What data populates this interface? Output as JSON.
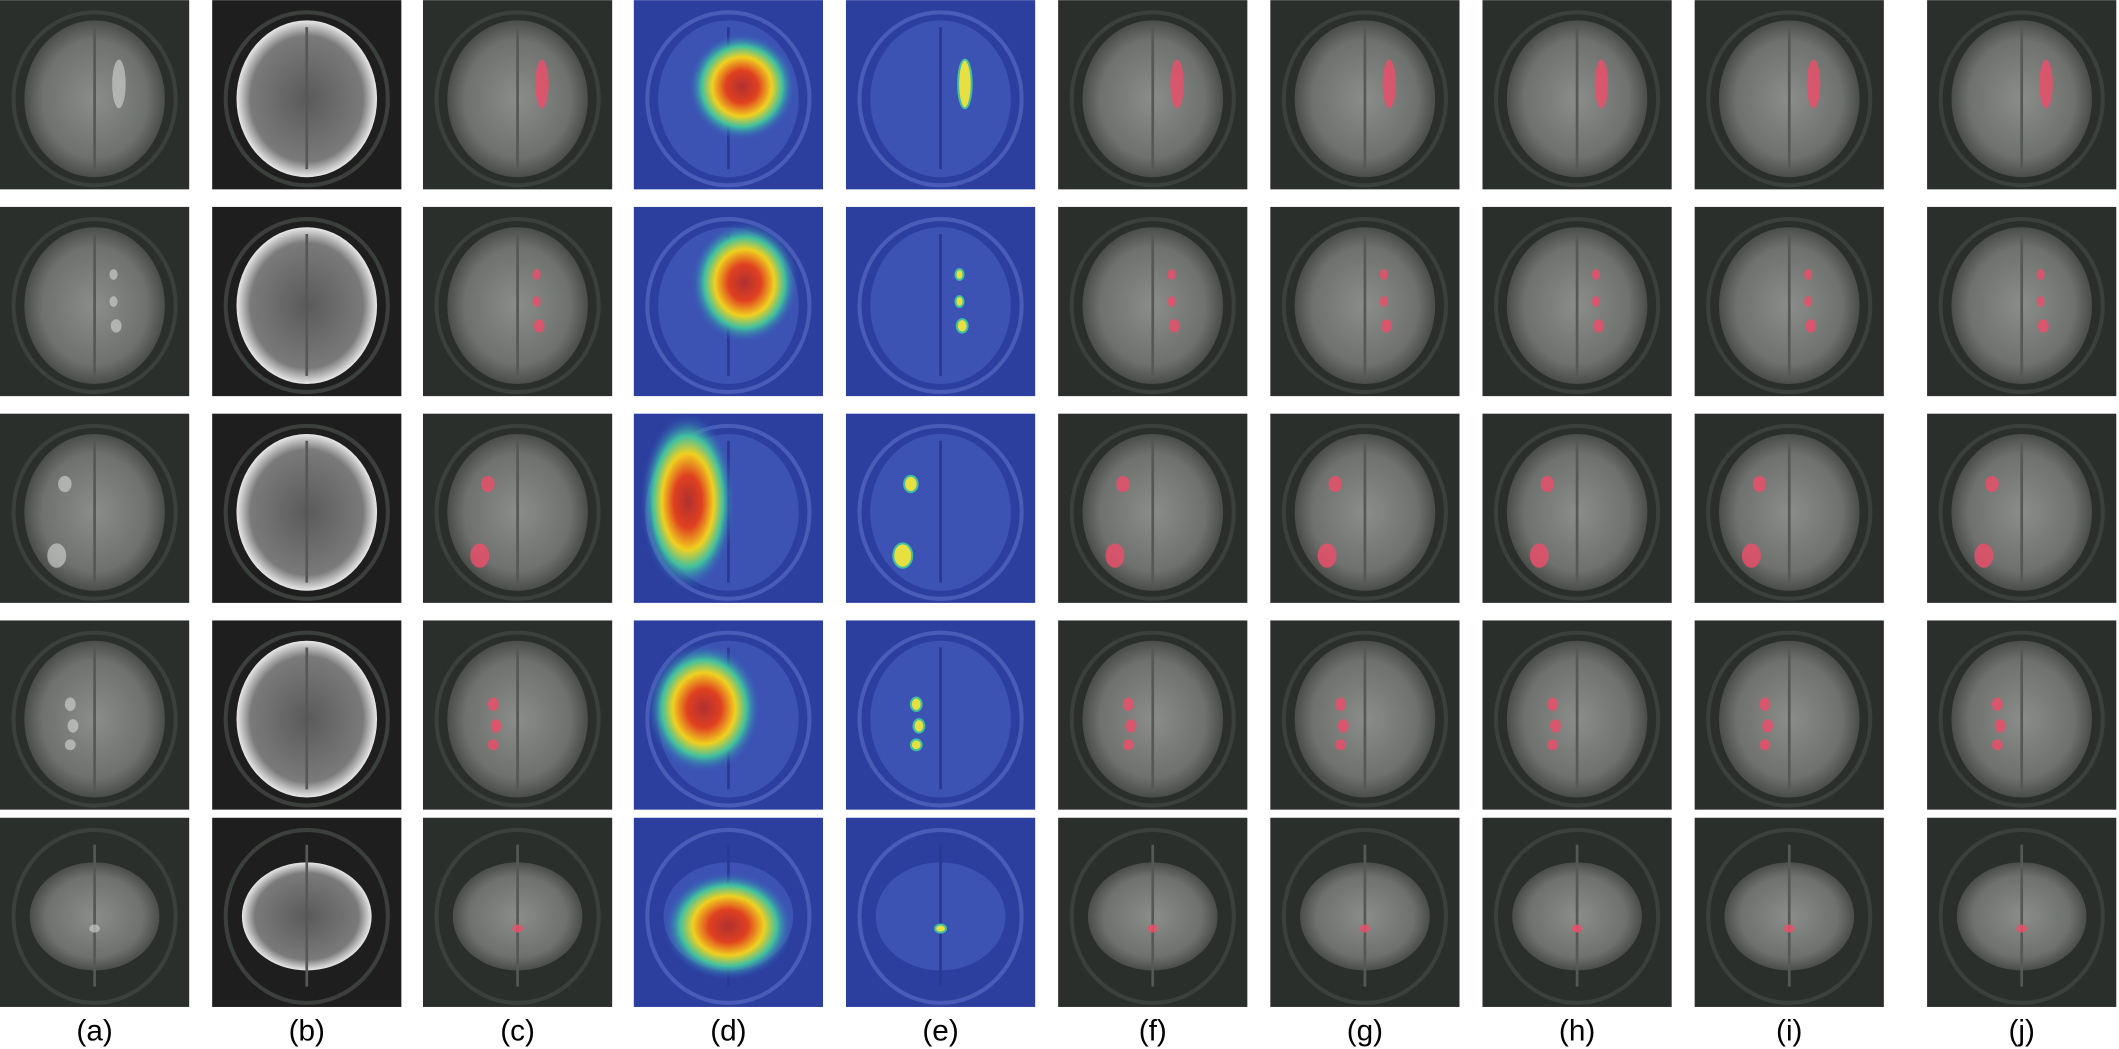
{
  "figure": {
    "column_labels": [
      "(a)",
      "(b)",
      "(c)",
      "(d)",
      "(e)",
      "(f)",
      "(g)",
      "(h)",
      "(i)",
      "(j)"
    ]
  }
}
